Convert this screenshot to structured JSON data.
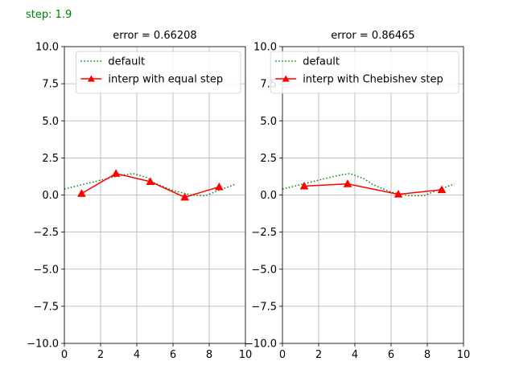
{
  "step_text": "step: 1.9",
  "colors": {
    "default": "#008000",
    "interp": "#ff0000",
    "grid": "#b0b0b0"
  },
  "chart_data": [
    {
      "type": "line",
      "title": "error = 0.66208",
      "xlim": [
        0,
        10
      ],
      "ylim": [
        -10,
        10
      ],
      "xticks": [
        0,
        2,
        4,
        6,
        8,
        10
      ],
      "yticks": [
        -10,
        -7.5,
        -5,
        -2.5,
        0,
        2.5,
        5,
        7.5,
        10
      ],
      "xtick_labels": [
        "0",
        "2",
        "4",
        "6",
        "8",
        "10"
      ],
      "ytick_labels": [
        "−10.0",
        "−7.5",
        "−5.0",
        "−2.5",
        "0.0",
        "2.5",
        "5.0",
        "7.5",
        "10.0"
      ],
      "grid": true,
      "legend_position": "top-right",
      "series": [
        {
          "name": "default",
          "style": "dotted",
          "color": "#008000",
          "x": [
            0,
            1,
            2,
            3,
            3.8,
            4.5,
            5,
            6,
            7,
            7.8,
            8.5,
            9.5
          ],
          "y": [
            0.4,
            0.7,
            1.0,
            1.3,
            1.45,
            1.2,
            0.8,
            0.3,
            0.0,
            -0.05,
            0.3,
            0.75
          ]
        },
        {
          "name": "interp with equal step",
          "style": "solid",
          "marker": "triangle",
          "color": "#ff0000",
          "x": [
            0.95,
            2.85,
            4.75,
            6.65,
            8.55
          ],
          "y": [
            0.1,
            1.45,
            0.9,
            -0.15,
            0.55
          ]
        }
      ]
    },
    {
      "type": "line",
      "title": "error = 0.86465",
      "xlim": [
        0,
        10
      ],
      "ylim": [
        -10,
        10
      ],
      "xticks": [
        0,
        2,
        4,
        6,
        8,
        10
      ],
      "yticks": [
        -10,
        -7.5,
        -5,
        -2.5,
        0,
        2.5,
        5,
        7.5,
        10
      ],
      "xtick_labels": [
        "0",
        "2",
        "4",
        "6",
        "8",
        "10"
      ],
      "ytick_labels": [
        "−10.0",
        "−7.5",
        "−5.0",
        "−2.5",
        "0.0",
        "2.5",
        "5.0",
        "7.5",
        "10.0"
      ],
      "grid": true,
      "legend_position": "top-right",
      "series": [
        {
          "name": "default",
          "style": "dotted",
          "color": "#008000",
          "x": [
            0,
            1,
            2,
            3,
            3.7,
            4.5,
            5,
            6,
            7,
            7.8,
            8.5,
            9.5
          ],
          "y": [
            0.4,
            0.7,
            1.0,
            1.3,
            1.45,
            1.1,
            0.7,
            0.2,
            -0.05,
            -0.05,
            0.3,
            0.75
          ]
        },
        {
          "name": "interp with Chebishev step",
          "style": "solid",
          "marker": "triangle",
          "color": "#ff0000",
          "x": [
            1.2,
            3.6,
            6.4,
            8.8
          ],
          "y": [
            0.6,
            0.75,
            0.05,
            0.35
          ]
        }
      ]
    }
  ]
}
